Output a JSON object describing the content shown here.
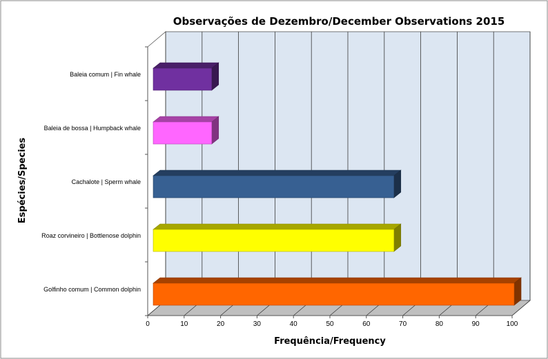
{
  "chart_data": {
    "type": "bar",
    "orientation": "horizontal",
    "style": "3d",
    "title": "Observações de Dezembro/December  Observations 2015",
    "xlabel": "Frequência/Frequency",
    "ylabel": "Espécies/Species",
    "xlim": [
      0,
      100
    ],
    "xticks": [
      0,
      10,
      20,
      30,
      40,
      50,
      60,
      70,
      80,
      90,
      100
    ],
    "grid": true,
    "legend": "none",
    "categories": [
      "Baleia comum | Fin whale",
      "Baleia de bossa | Humpback whale",
      "Cachalote | Sperm whale",
      "Roaz corvineiro | Bottlenose dolphin",
      "Golfinho comum | Common dolphin"
    ],
    "values": [
      17,
      17,
      67,
      67,
      100
    ],
    "colors": [
      "#7030a0",
      "#ff66ff",
      "#376092",
      "#ffff00",
      "#ff6600"
    ]
  }
}
